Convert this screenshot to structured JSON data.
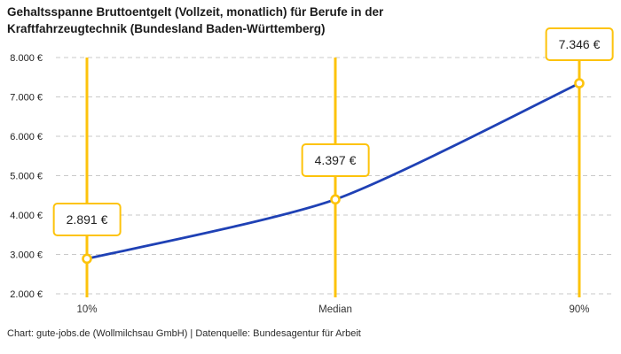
{
  "title": "Gehaltsspanne Bruttoentgelt (Vollzeit, monatlich) für Berufe in der Kraftfahrzeugtechnik (Bundesland Baden-Württemberg)",
  "footer": "Chart: gute-jobs.de (Wollmilchsau GmbH) | Datenquelle: Bundesagentur für Arbeit",
  "colors": {
    "accent_yellow": "#FDC30B",
    "line_blue": "#1F41B5",
    "grid_gray": "#C9C9C9",
    "title_text": "#1A1A1A",
    "axis_text": "#333333",
    "label_text": "#222222",
    "background": "#FFFFFF"
  },
  "chart_data": {
    "type": "line",
    "categories": [
      "10%",
      "Median",
      "90%"
    ],
    "values": [
      2891,
      4397,
      7346
    ],
    "point_labels": [
      "2.891 €",
      "4.397 €",
      "7.346 €"
    ],
    "y_tick_values": [
      2000,
      3000,
      4000,
      5000,
      6000,
      7000,
      8000
    ],
    "y_tick_labels": [
      "2.000 €",
      "3.000 €",
      "4.000 €",
      "5.000 €",
      "6.000 €",
      "7.000 €",
      "8.000 €"
    ],
    "ylim": [
      2000,
      8000
    ],
    "xlabel": "",
    "ylabel": "",
    "grid": "horizontal-dashed",
    "marker": "open-circle",
    "legend": "none"
  }
}
